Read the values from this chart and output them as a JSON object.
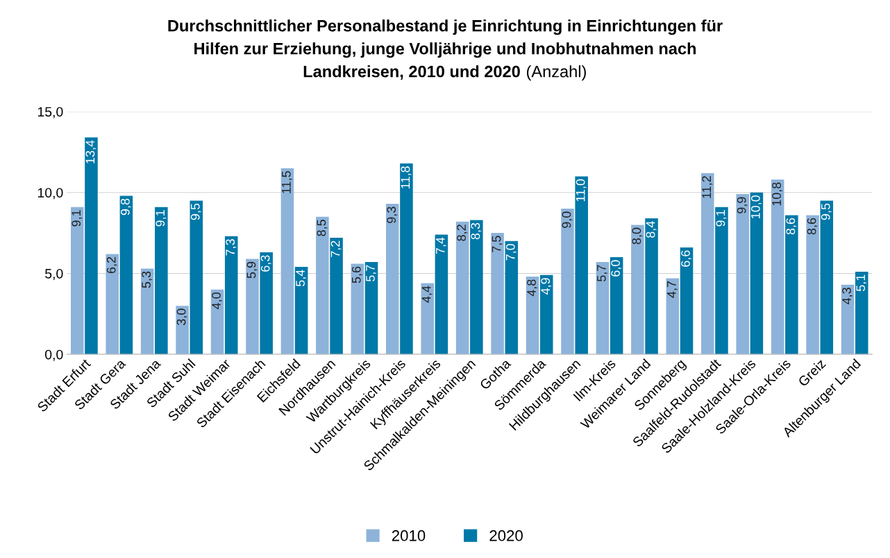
{
  "chart_data": {
    "type": "bar",
    "title": "Durchschnittlicher Personalbestand je Einrichtung in Einrichtungen für\nHilfen zur Erziehung, junge Volljährige und Inobhutnahmen nach\nLandkreisen, 2010 und 2020",
    "subtitle": "(Anzahl)",
    "categories": [
      "Stadt Erfurt",
      "Stadt Gera",
      "Stadt Jena",
      "Stadt Suhl",
      "Stadt Weimar",
      "Stadt Eisenach",
      "Eichsfeld",
      "Nordhausen",
      "Wartburgkreis",
      "Unstrut-Hainich-Kreis",
      "Kyffhäuserkreis",
      "Schmalkalden-Meiningen",
      "Gotha",
      "Sömmerda",
      "Hildburghausen",
      "Ilm-Kreis",
      "Weimarer Land",
      "Sonneberg",
      "Saalfeld-Rudolstadt",
      "Saale-Holzland-Kreis",
      "Saale-Orla-Kreis",
      "Greiz",
      "Altenburger Land"
    ],
    "series": [
      {
        "name": "2010",
        "color": "#8db3da",
        "values": [
          9.1,
          6.2,
          5.3,
          3.0,
          4.0,
          5.9,
          11.5,
          8.5,
          5.6,
          9.3,
          4.4,
          8.2,
          7.5,
          4.8,
          9.0,
          5.7,
          8.0,
          4.7,
          11.2,
          9.9,
          10.8,
          8.6,
          4.3
        ],
        "value_labels": [
          "9,1",
          "6,2",
          "5,3",
          "3,0",
          "4,0",
          "5,9",
          "11,5",
          "8,5",
          "5,6",
          "9,3",
          "4,4",
          "8,2",
          "7,5",
          "4,8",
          "9,0",
          "5,7",
          "8,0",
          "4,7",
          "11,2",
          "9,9",
          "10,8",
          "8,6",
          "4,3"
        ]
      },
      {
        "name": "2020",
        "color": "#0078a8",
        "values": [
          13.4,
          9.8,
          9.1,
          9.5,
          7.3,
          6.3,
          5.4,
          7.2,
          5.7,
          11.8,
          7.4,
          8.3,
          7.0,
          4.9,
          11.0,
          6.0,
          8.4,
          6.6,
          9.1,
          10.0,
          8.6,
          9.5,
          5.1
        ],
        "value_labels": [
          "13,4",
          "9,8",
          "9,1",
          "9,5",
          "7,3",
          "6,3",
          "5,4",
          "7,2",
          "5,7",
          "11,8",
          "7,4",
          "8,3",
          "7,0",
          "4,9",
          "11,0",
          "6,0",
          "8,4",
          "6,6",
          "9,1",
          "10,0",
          "8,6",
          "9,5",
          "5,1"
        ]
      }
    ],
    "ylim": [
      0,
      15
    ],
    "yticks": [
      {
        "value": 0,
        "label": "0,0"
      },
      {
        "value": 5,
        "label": "5,0"
      },
      {
        "value": 10,
        "label": "10,0"
      },
      {
        "value": 15,
        "label": "15,0"
      }
    ],
    "grid": "y",
    "legend": "bottom"
  }
}
